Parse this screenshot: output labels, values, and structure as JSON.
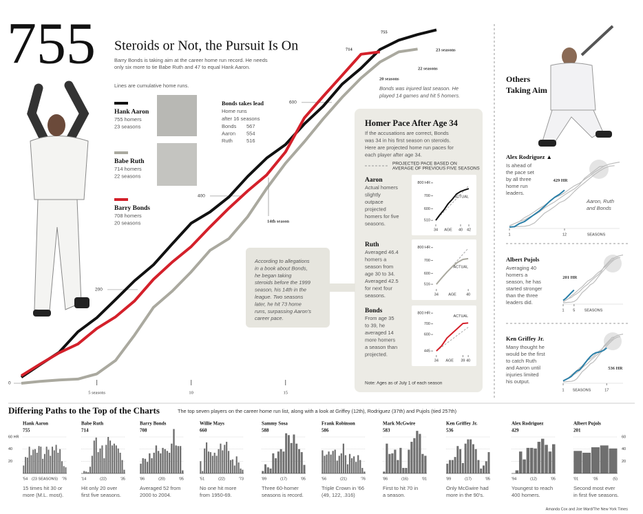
{
  "header": {
    "number": "755",
    "title": "Steroids or Not, the Pursuit Is On",
    "subtitle": [
      "Barry Bonds is taking aim at the career home run record. He needs",
      "only six more to tie Babe Ruth and 47 to equal Hank Aaron."
    ],
    "note": "Lines are cumulative home runs."
  },
  "lead": {
    "title": "Bonds takes lead",
    "text": [
      "Home runs",
      "after 16 seasons"
    ],
    "rows": [
      [
        "Bonds",
        "567"
      ],
      [
        "Aaron",
        "554"
      ],
      [
        "Ruth",
        "516"
      ]
    ]
  },
  "pace_panel": {
    "title": "Homer Pace After Age 34",
    "intro": [
      "If the accusations are correct, Bonds",
      "was 34 in his first season on steroids.",
      "Here are projected home run paces for",
      "each player after age 34."
    ],
    "legend": [
      "PROJECTED PACE BASED ON",
      "AVERAGE OF PREVIOUS FIVE SEASONS"
    ],
    "note": "Note: Ages as of July 1 of each season"
  },
  "others": {
    "title": [
      "Others",
      "Taking Aim"
    ]
  },
  "bottom": {
    "title": "Differing Paths to the Top of the Charts",
    "subtitle": "The top seven players on the career home run list, along with a look at Griffey (12th), Rodriguez (37th) and Pujols (tied 257th)"
  },
  "credit": "Amanda Cox and Joe Ward/The New York Times",
  "chart_data": [
    {
      "type": "line",
      "x": [
        1,
        2,
        3,
        4,
        5,
        6,
        7,
        8,
        9,
        10,
        11,
        12,
        13,
        14,
        15,
        16,
        17,
        18,
        19,
        20,
        21,
        22,
        23
      ],
      "xlim": [
        1,
        23
      ],
      "ylim": [
        0,
        760
      ],
      "yticks": [
        0,
        200,
        400,
        600
      ],
      "xticks": [
        {
          "value": 5,
          "label": "5 seasons"
        },
        10,
        15
      ],
      "series": [
        {
          "name": "Hank Aaron",
          "stats": [
            "755 homers",
            "23 seasons"
          ],
          "color": "#111111",
          "values": [
            13,
            40,
            66,
            110,
            140,
            179,
            219,
            253,
            298,
            342,
            366,
            398,
            442,
            481,
            510,
            554,
            592,
            639,
            673,
            713,
            733,
            745,
            755
          ]
        },
        {
          "name": "Babe Ruth",
          "stats": [
            "714 homers",
            "22 seasons"
          ],
          "color": "#aaa99f",
          "values": [
            0,
            4,
            7,
            9,
            20,
            49,
            103,
            162,
            197,
            238,
            284,
            309,
            356,
            416,
            470,
            516,
            565,
            611,
            652,
            686,
            708,
            714,
            null
          ]
        },
        {
          "name": "Barry Bonds",
          "stats": [
            "708 homers",
            "20 seasons"
          ],
          "color": "#d4202a",
          "values": [
            16,
            41,
            65,
            84,
            117,
            142,
            176,
            222,
            259,
            292,
            334,
            374,
            411,
            445,
            494,
            567,
            613,
            658,
            703,
            708,
            null,
            null,
            null
          ]
        }
      ],
      "labels": [
        "755",
        "714",
        "23 seasons",
        "22 seasons",
        "20 seasons",
        "14th season"
      ],
      "injured_note": [
        "Bonds was injured last season. He",
        "played 14 games and hit 5 homers."
      ],
      "allegation_note": [
        "According to allegations",
        "in a book about Bonds,",
        "he began taking",
        "steroids before the 1999",
        "season, his 14th in the",
        "league. Two seasons",
        "later, he hit 73 home",
        "runs, surpassing Aaron's",
        "career pace."
      ]
    },
    {
      "type": "line",
      "title": "Aaron",
      "text": [
        "Actual homers",
        "slightly",
        "outpace",
        "projected",
        "homers for five",
        "seasons."
      ],
      "x": [
        34,
        35,
        36,
        37,
        38,
        39,
        40,
        41,
        42
      ],
      "xlim": [
        33.5,
        42.5
      ],
      "ylim": [
        490,
        820
      ],
      "yticks": [
        {
          "value": 800,
          "label": "800 HR"
        },
        700,
        600,
        510
      ],
      "xticks": [
        34,
        40,
        42
      ],
      "x_label": "AGE",
      "series": [
        {
          "color": "#aaaaaa",
          "dash": true,
          "values": [
            510,
            544,
            577,
            611,
            644,
            678,
            712,
            745,
            779
          ]
        },
        {
          "name": "ACTUAL",
          "color": "#111111",
          "values": [
            510,
            554,
            592,
            639,
            673,
            713,
            733,
            745,
            755
          ]
        }
      ]
    },
    {
      "type": "line",
      "title": "Ruth",
      "text": [
        "Averaged 46.4",
        "homers a",
        "season from",
        "age 30 to 34.",
        "Averaged 42.5",
        "for next four",
        "seasons."
      ],
      "x": [
        34,
        35,
        36,
        37,
        38,
        39,
        40
      ],
      "xlim": [
        33.5,
        40.5
      ],
      "ylim": [
        490,
        820
      ],
      "yticks": [
        {
          "value": 800,
          "label": "800 HR"
        },
        700,
        600,
        516
      ],
      "xticks": [
        34,
        40
      ],
      "x_label": "AGE",
      "series": [
        {
          "color": "#aaaaaa",
          "dash": true,
          "values": [
            516,
            562,
            609,
            655,
            702,
            748,
            794
          ]
        },
        {
          "name": "ACTUAL",
          "color": "#aaa99f",
          "values": [
            516,
            565,
            611,
            652,
            686,
            708,
            714
          ]
        }
      ]
    },
    {
      "type": "line",
      "title": "Bonds",
      "text": [
        "From age 35",
        "to 39, he",
        "averaged 14",
        "more homers",
        "a season than",
        "projected."
      ],
      "x": [
        34,
        35,
        36,
        37,
        38,
        39,
        40
      ],
      "xlim": [
        33.5,
        40.5
      ],
      "ylim": [
        420,
        820
      ],
      "yticks": [
        {
          "value": 800,
          "label": "800 HR"
        },
        700,
        600,
        445
      ],
      "xticks": [
        34,
        39,
        40
      ],
      "x_label": "AGE",
      "series": [
        {
          "color": "#aaaaaa",
          "dash": true,
          "values": [
            445,
            482,
            520,
            557,
            594,
            631,
            668
          ]
        },
        {
          "name": "ACTUAL",
          "color": "#d4202a",
          "values": [
            445,
            494,
            567,
            613,
            658,
            703,
            708
          ]
        }
      ]
    },
    {
      "type": "line",
      "title": "Alex Rodriguez ▲",
      "text": [
        "Is ahead of",
        "the pace set",
        "by all three",
        "home run",
        "leaders."
      ],
      "annotation": [
        "Aaron, Ruth",
        "and Bonds"
      ],
      "x": [
        1,
        2,
        3,
        4,
        5,
        6,
        7,
        8,
        9,
        10,
        11,
        12
      ],
      "xlim": [
        1,
        23
      ],
      "ylim": [
        0,
        760
      ],
      "xticks": [
        1,
        12
      ],
      "x_label": "SEASONS",
      "series": [
        {
          "color": "#2a7fa8",
          "values": [
            0,
            5,
            41,
            64,
            106,
            148,
            189,
            241,
            298,
            345,
            381,
            429
          ],
          "value_labels": [
            null,
            null,
            null,
            null,
            null,
            null,
            null,
            null,
            null,
            null,
            null,
            "429 HR"
          ]
        }
      ]
    },
    {
      "type": "line",
      "title": "Albert Pujols",
      "text": [
        "Averaging 40",
        "homers a",
        "season, he has",
        "started stronger",
        "than the three",
        "leaders did."
      ],
      "x": [
        1,
        2,
        3,
        4,
        5
      ],
      "xlim": [
        1,
        23
      ],
      "ylim": [
        0,
        760
      ],
      "xticks": [
        1,
        5
      ],
      "x_label": "SEASONS",
      "series": [
        {
          "color": "#2a7fa8",
          "values": [
            37,
            71,
            114,
            160,
            201
          ],
          "value_labels": [
            null,
            null,
            null,
            null,
            "201 HR"
          ]
        }
      ]
    },
    {
      "type": "line",
      "title": "Ken Griffey Jr.",
      "text": [
        "Many thought he",
        "would be the first",
        "to catch Ruth",
        "and Aaron until",
        "injuries limited",
        "his output."
      ],
      "x": [
        1,
        2,
        3,
        4,
        5,
        6,
        7,
        8,
        9,
        10,
        11,
        12,
        13,
        14,
        15,
        16,
        17
      ],
      "xlim": [
        1,
        23
      ],
      "ylim": [
        0,
        760
      ],
      "xticks": [
        1,
        17
      ],
      "x_label": "SEASONS",
      "series": [
        {
          "color": "#2a7fa8",
          "values": [
            16,
            38,
            60,
            87,
            132,
            172,
            189,
            238,
            294,
            350,
            398,
            438,
            460,
            468,
            481,
            501,
            536
          ],
          "value_labels": [
            null,
            null,
            null,
            null,
            null,
            null,
            null,
            null,
            null,
            null,
            null,
            null,
            null,
            null,
            null,
            null,
            "536 HR"
          ]
        }
      ]
    },
    {
      "type": "bar",
      "title": "Hank Aaron",
      "subtitle": "755",
      "ylim": [
        0,
        75
      ],
      "yticks": [
        {
          "value": 60,
          "label": "60 HR"
        },
        40,
        20
      ],
      "ytick_labels": "left",
      "x_labels": [
        "'54",
        "(23 SEASONS)",
        "'76"
      ],
      "caption": [
        "15 times hit 30 or",
        "more (M.L. most)."
      ],
      "values": [
        13,
        27,
        26,
        44,
        30,
        39,
        40,
        34,
        45,
        44,
        24,
        32,
        44,
        39,
        29,
        44,
        38,
        47,
        34,
        40,
        20,
        12,
        10
      ]
    },
    {
      "type": "bar",
      "title": "Babe Ruth",
      "subtitle": "714",
      "ylim": [
        0,
        75
      ],
      "yticks": [
        60,
        40,
        20
      ],
      "x_labels": [
        "'14",
        "(22)",
        "'35"
      ],
      "caption": [
        "Hit only 20 over",
        "first five seasons."
      ],
      "values": [
        0,
        4,
        3,
        2,
        11,
        29,
        54,
        59,
        35,
        41,
        46,
        25,
        47,
        60,
        54,
        46,
        49,
        46,
        41,
        34,
        22,
        6
      ]
    },
    {
      "type": "bar",
      "title": "Barry Bonds",
      "subtitle": "708",
      "ylim": [
        0,
        75
      ],
      "yticks": [
        60,
        40,
        20
      ],
      "x_labels": [
        "'86",
        "(20)",
        "'05"
      ],
      "caption": [
        "Averaged 52 from",
        "2000 to 2004."
      ],
      "values": [
        16,
        25,
        24,
        19,
        33,
        25,
        34,
        46,
        37,
        33,
        42,
        40,
        37,
        34,
        49,
        73,
        46,
        45,
        45,
        5
      ]
    },
    {
      "type": "bar",
      "title": "Willie Mays",
      "subtitle": "660",
      "ylim": [
        0,
        75
      ],
      "yticks": [
        60,
        40,
        20
      ],
      "x_labels": [
        "'51",
        "(22)",
        "'73"
      ],
      "caption": [
        "No one hit more",
        "from 1950-69."
      ],
      "values": [
        20,
        4,
        41,
        51,
        36,
        35,
        29,
        34,
        29,
        40,
        49,
        38,
        47,
        52,
        37,
        22,
        23,
        13,
        28,
        18,
        8,
        6
      ]
    },
    {
      "type": "bar",
      "title": "Sammy Sosa",
      "subtitle": "588",
      "ylim": [
        0,
        75
      ],
      "yticks": [
        60,
        40,
        20
      ],
      "x_labels": [
        "'89",
        "(17)",
        "'05"
      ],
      "caption": [
        "Three 60-homer",
        "seasons is record."
      ],
      "values": [
        4,
        15,
        10,
        8,
        33,
        25,
        36,
        40,
        36,
        66,
        63,
        50,
        64,
        49,
        40,
        35,
        14
      ]
    },
    {
      "type": "bar",
      "title": "Frank Robinson",
      "subtitle": "586",
      "ylim": [
        0,
        75
      ],
      "yticks": [
        60,
        40,
        20
      ],
      "x_labels": [
        "'56",
        "(21)",
        "'76"
      ],
      "caption": [
        "Triple Crown in '66",
        "(49, 122, .316)"
      ],
      "values": [
        38,
        29,
        31,
        36,
        31,
        37,
        39,
        21,
        29,
        33,
        49,
        30,
        15,
        32,
        25,
        28,
        19,
        30,
        22,
        9,
        3
      ]
    },
    {
      "type": "bar",
      "title": "Mark McGwire",
      "subtitle": "583",
      "ylim": [
        0,
        75
      ],
      "yticks": [
        60,
        40,
        20
      ],
      "x_labels": [
        "'86",
        "(16)",
        "'01"
      ],
      "caption": [
        "First to hit 70 in",
        "a season."
      ],
      "values": [
        3,
        49,
        32,
        33,
        39,
        22,
        42,
        9,
        9,
        39,
        52,
        58,
        70,
        65,
        32,
        29
      ]
    },
    {
      "type": "bar",
      "title": "Ken Griffey Jr.",
      "subtitle": "536",
      "ylim": [
        0,
        75
      ],
      "yticks": [
        60,
        40,
        20
      ],
      "x_labels": [
        "'89",
        "(17)",
        "'05"
      ],
      "caption": [
        "Only McGwire had",
        "more in the 90's."
      ],
      "values": [
        16,
        22,
        22,
        27,
        45,
        40,
        17,
        49,
        56,
        56,
        48,
        40,
        22,
        8,
        13,
        20,
        35
      ]
    },
    {
      "type": "bar",
      "title": "Alex Rodriguez",
      "subtitle": "429",
      "ylim": [
        0,
        75
      ],
      "yticks": [
        60,
        40,
        20
      ],
      "x_labels": [
        "'94",
        "(12)",
        "'05"
      ],
      "caption": [
        "Youngest to reach",
        "400 homers."
      ],
      "values": [
        0,
        5,
        36,
        23,
        42,
        42,
        41,
        52,
        57,
        47,
        36,
        48
      ]
    },
    {
      "type": "bar",
      "title": "Albert Pujols",
      "subtitle": "201",
      "ylim": [
        0,
        75
      ],
      "yticks": [
        60,
        40,
        20
      ],
      "ytick_labels": "right",
      "x_labels": [
        "'01",
        "'05",
        "(5)"
      ],
      "caption": [
        "Second most ever",
        "in first five seasons."
      ],
      "values": [
        37,
        34,
        43,
        46,
        41
      ]
    }
  ]
}
